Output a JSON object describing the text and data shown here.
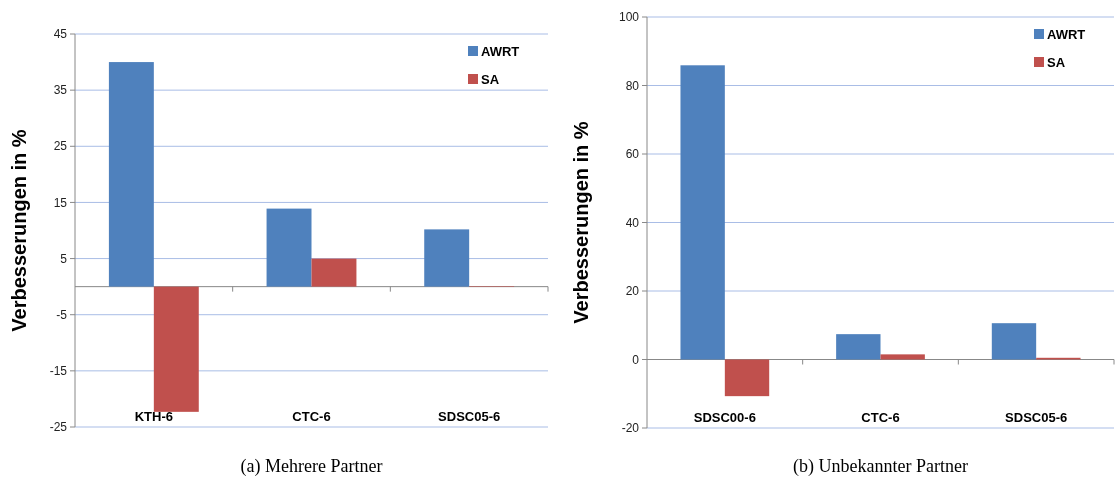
{
  "chart_data": [
    {
      "type": "bar",
      "title": "(a)  Mehrere Partner",
      "ylabel": "Verbesserungen in %",
      "categories": [
        "KTH-6",
        "CTC-6",
        "SDSC05-6"
      ],
      "series": [
        {
          "name": "AWRT",
          "color": "#4f81bd",
          "values": [
            40,
            13.9,
            10.2
          ]
        },
        {
          "name": "SA",
          "color": "#c0504d",
          "values": [
            -22.3,
            5,
            0.1
          ]
        }
      ],
      "ylim": [
        -25,
        45
      ],
      "yticks": [
        -25,
        -15,
        -5,
        5,
        15,
        25,
        35,
        45
      ],
      "grid": "y",
      "legend": "top right"
    },
    {
      "type": "bar",
      "title": "(b)  Unbekannter Partner",
      "ylabel": "Verbesserungen in %",
      "categories": [
        "SDSC00-6",
        "CTC-6",
        "SDSC05-6"
      ],
      "series": [
        {
          "name": "AWRT",
          "color": "#4f81bd",
          "values": [
            85.9,
            7.4,
            10.6
          ]
        },
        {
          "name": "SA",
          "color": "#c0504d",
          "values": [
            -10.7,
            1.5,
            0.5
          ]
        }
      ],
      "ylim": [
        -20,
        100
      ],
      "yticks": [
        -20,
        0,
        20,
        40,
        60,
        80,
        100
      ],
      "grid": "y",
      "legend": "top right"
    }
  ]
}
